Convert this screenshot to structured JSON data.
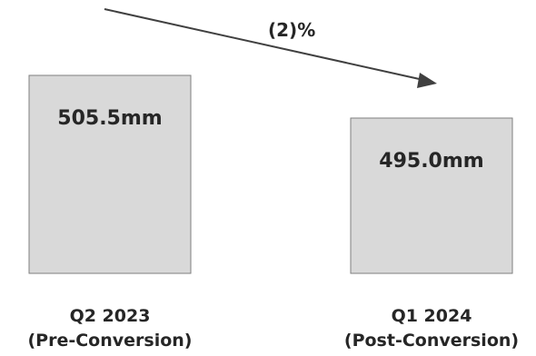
{
  "chart_data": {
    "type": "bar",
    "categories": [
      {
        "line1": "Q2 2023",
        "line2": "(Pre-Conversion)"
      },
      {
        "line1": "Q1 2024",
        "line2": "(Post-Conversion)"
      }
    ],
    "values": [
      505.5,
      495.0
    ],
    "data_labels": [
      "505.5mm",
      "495.0mm"
    ],
    "annotation": {
      "text": "(2)%"
    },
    "bar_color": "#d9d9d9",
    "bar_edge_color": "#7f7f7f",
    "arrow_color": "#404040",
    "text_color": "#262626",
    "grid": false,
    "legend": "none"
  }
}
